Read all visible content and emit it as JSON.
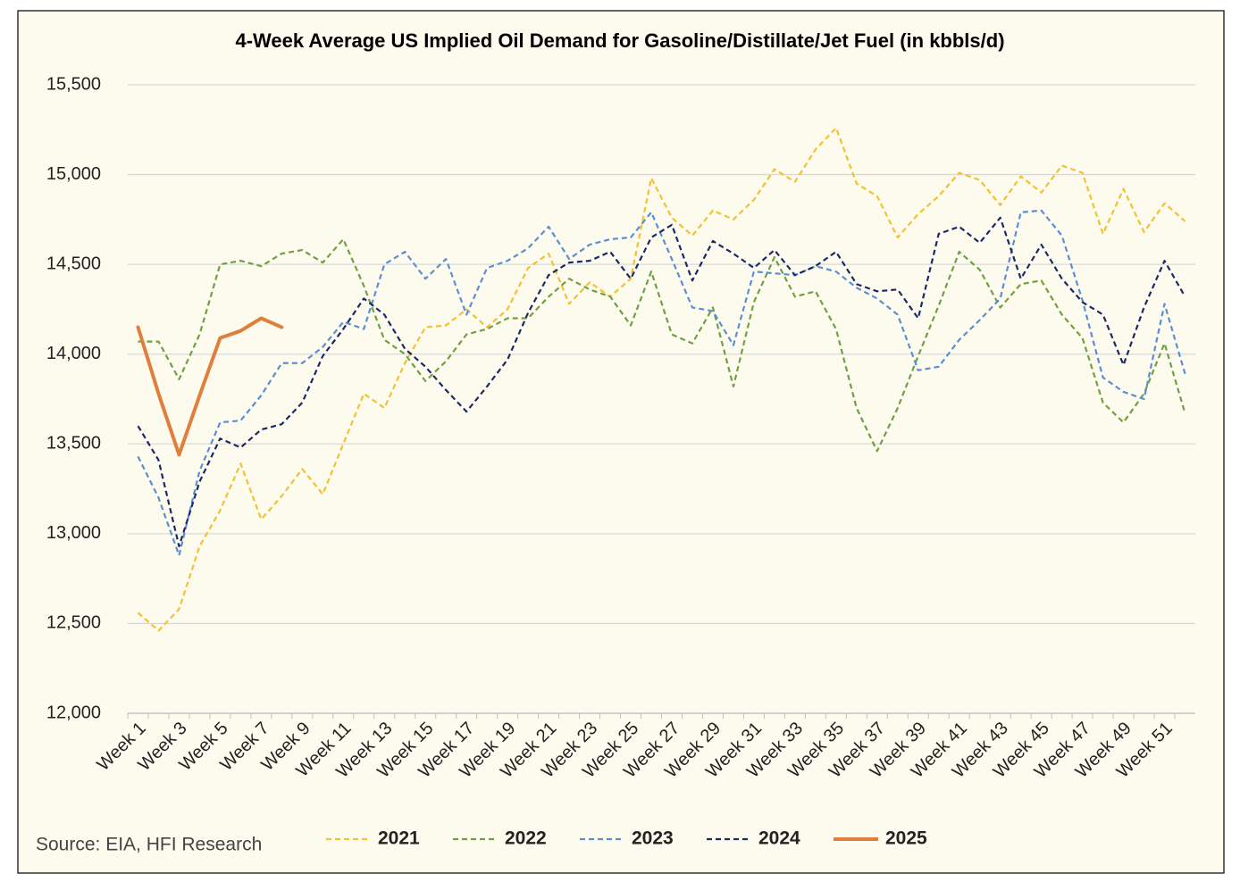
{
  "chart_data": {
    "type": "line",
    "title": "4-Week Average US Implied Oil Demand for Gasoline/Distillate/Jet Fuel (in kbbls/d)",
    "source": "Source: EIA, HFI Research",
    "categories": [
      "Week 1",
      null,
      "Week 3",
      null,
      "Week 5",
      null,
      "Week 7",
      null,
      "Week 9",
      null,
      "Week 11",
      null,
      "Week 13",
      null,
      "Week 15",
      null,
      "Week 17",
      null,
      "Week 19",
      null,
      "Week 21",
      null,
      "Week 23",
      null,
      "Week 25",
      null,
      "Week 27",
      null,
      "Week 29",
      null,
      "Week 31",
      null,
      "Week 33",
      null,
      "Week 35",
      null,
      "Week 37",
      null,
      "Week 39",
      null,
      "Week 41",
      null,
      "Week 43",
      null,
      "Week 45",
      null,
      "Week 47",
      null,
      "Week 49",
      null,
      "Week 51",
      null
    ],
    "ylim": [
      12000,
      15500
    ],
    "yticks": [
      {
        "value": 12000,
        "label": "12,000"
      },
      {
        "value": 12500,
        "label": "12,500"
      },
      {
        "value": 13000,
        "label": "13,000"
      },
      {
        "value": 13500,
        "label": "13,500"
      },
      {
        "value": 14000,
        "label": "14,000"
      },
      {
        "value": 14500,
        "label": "14,500"
      },
      {
        "value": 15000,
        "label": "15,000"
      },
      {
        "value": 15500,
        "label": "15,500"
      }
    ],
    "grid": true,
    "legend": "bottom",
    "series": [
      {
        "name": "2021",
        "color": "#f2c232",
        "style": "dashed",
        "values": [
          12560,
          12460,
          12580,
          12930,
          13130,
          13390,
          13080,
          13210,
          13360,
          13220,
          13500,
          13780,
          13700,
          13950,
          14150,
          14160,
          14250,
          14150,
          14250,
          14480,
          14560,
          14280,
          14400,
          14320,
          14420,
          14980,
          14760,
          14660,
          14800,
          14750,
          14860,
          15030,
          14960,
          15140,
          15260,
          14950,
          14880,
          14650,
          14780,
          14880,
          15010,
          14970,
          14830,
          14990,
          14900,
          15050,
          15010,
          14670,
          14920,
          14680,
          14840,
          14740
        ]
      },
      {
        "name": "2022",
        "color": "#71a043",
        "style": "dashed",
        "values": [
          14070,
          14070,
          13860,
          14110,
          14500,
          14520,
          14490,
          14560,
          14580,
          14510,
          14640,
          14380,
          14080,
          14000,
          13850,
          13960,
          14110,
          14140,
          14200,
          14200,
          14320,
          14420,
          14360,
          14320,
          14160,
          14460,
          14110,
          14060,
          14260,
          13820,
          14290,
          14540,
          14320,
          14350,
          14140,
          13700,
          13460,
          13700,
          13990,
          14270,
          14570,
          14470,
          14260,
          14390,
          14410,
          14220,
          14090,
          13730,
          13620,
          13780,
          14060,
          13670
        ]
      },
      {
        "name": "2023",
        "color": "#5b8fd2",
        "style": "dashed",
        "values": [
          13430,
          13200,
          12880,
          13350,
          13620,
          13630,
          13770,
          13950,
          13950,
          14040,
          14180,
          14140,
          14500,
          14570,
          14420,
          14530,
          14220,
          14480,
          14520,
          14590,
          14710,
          14530,
          14610,
          14640,
          14650,
          14790,
          14530,
          14260,
          14240,
          14050,
          14460,
          14450,
          14440,
          14490,
          14460,
          14370,
          14310,
          14220,
          13910,
          13930,
          14080,
          14190,
          14310,
          14790,
          14800,
          14660,
          14300,
          13870,
          13790,
          13750,
          14280,
          13890
        ]
      },
      {
        "name": "2024",
        "color": "#1b2a66",
        "style": "dashed",
        "values": [
          13600,
          13410,
          12930,
          13290,
          13530,
          13480,
          13580,
          13610,
          13730,
          13990,
          14140,
          14310,
          14220,
          14030,
          13930,
          13800,
          13680,
          13820,
          13970,
          14230,
          14440,
          14510,
          14520,
          14570,
          14420,
          14650,
          14720,
          14410,
          14630,
          14560,
          14480,
          14580,
          14440,
          14490,
          14570,
          14390,
          14350,
          14360,
          14200,
          14670,
          14710,
          14620,
          14760,
          14420,
          14610,
          14420,
          14290,
          14220,
          13940,
          14260,
          14520,
          14320
        ]
      },
      {
        "name": "2025",
        "color": "#e07e3c",
        "style": "solid",
        "values": [
          14150,
          13780,
          13440,
          13770,
          14090,
          14130,
          14200,
          14150,
          null,
          null,
          null,
          null,
          null,
          null,
          null,
          null,
          null,
          null,
          null,
          null,
          null,
          null,
          null,
          null,
          null,
          null,
          null,
          null,
          null,
          null,
          null,
          null,
          null,
          null,
          null,
          null,
          null,
          null,
          null,
          null,
          null,
          null,
          null,
          null,
          null,
          null,
          null,
          null,
          null,
          null,
          null,
          null
        ]
      }
    ]
  }
}
